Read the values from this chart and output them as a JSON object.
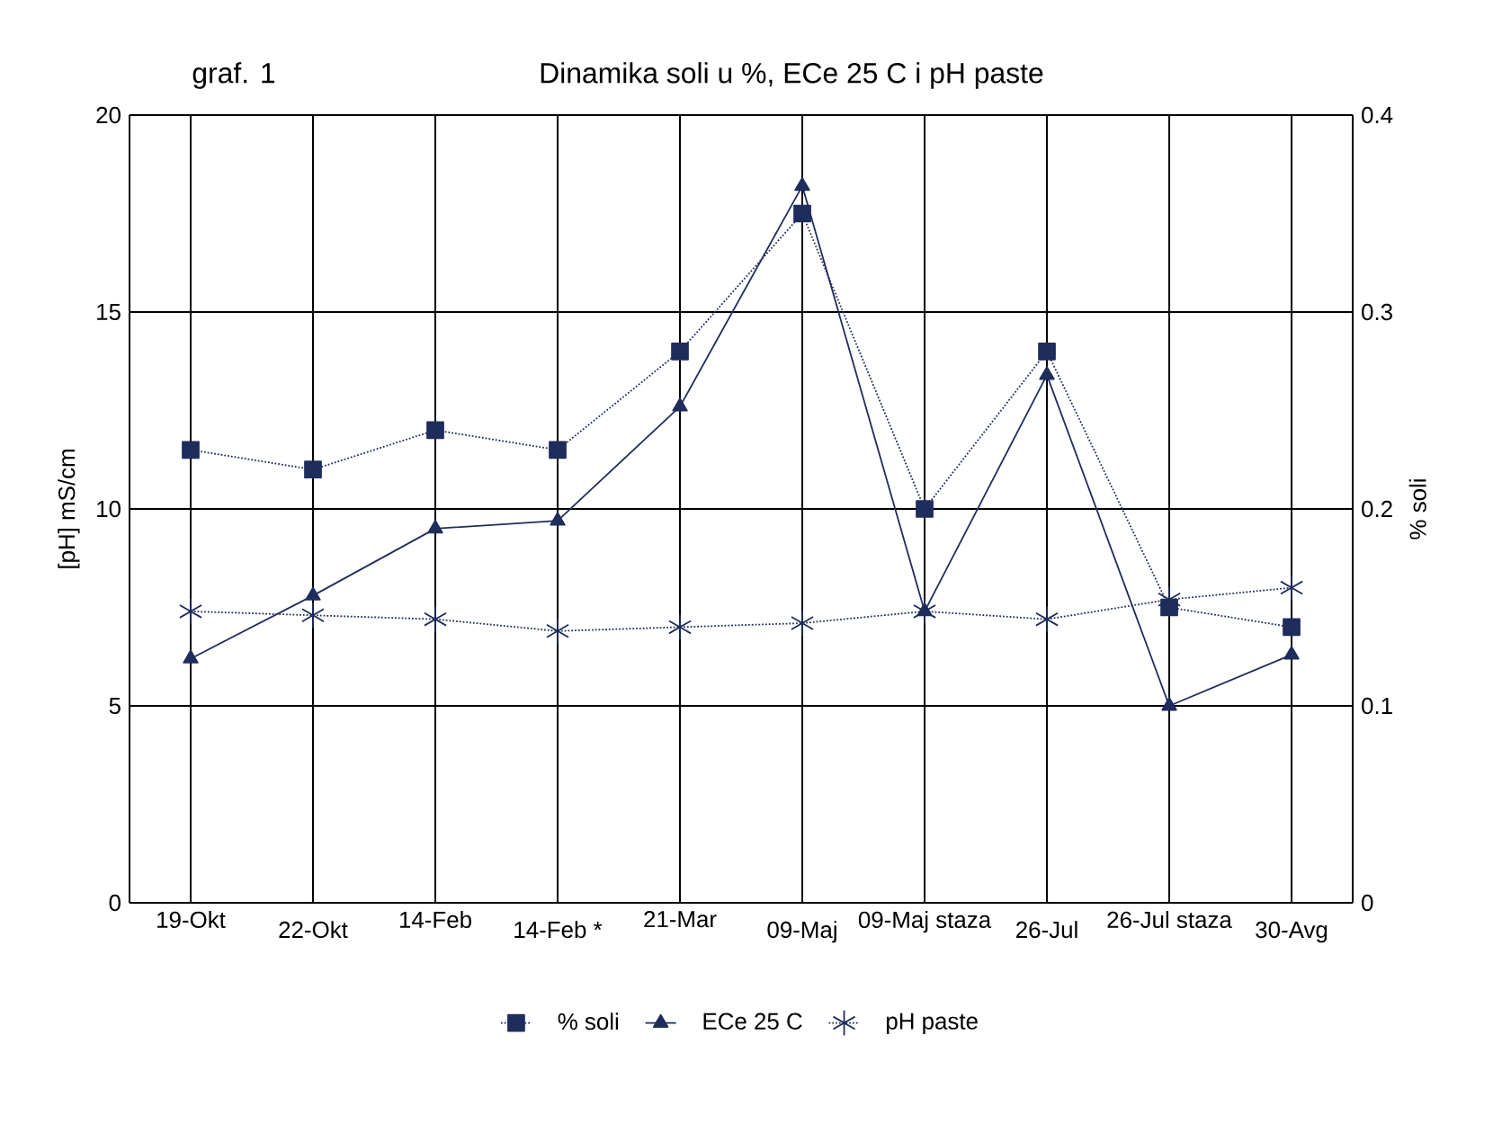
{
  "chart_data": {
    "type": "line",
    "title": "Dinamika soli u  %, ECe 25 C i pH paste",
    "subtitle": "graf.   1",
    "ylabel": "[pH]      mS/cm",
    "y2label": "% soli",
    "categories": [
      "19-Okt",
      "22-Okt",
      "14-Feb",
      "14-Feb  *",
      "21-Mar",
      "09-Maj",
      "09-Maj staza",
      "26-Jul",
      "26-Jul staza",
      "30-Avg"
    ],
    "series": [
      {
        "name": "% soli",
        "color": "#1f2d5c",
        "axis": "y2",
        "marker": "square",
        "line_style": "dotted",
        "values": [
          0.23,
          0.22,
          0.24,
          0.23,
          0.28,
          0.35,
          0.2,
          0.28,
          0.15,
          0.14
        ]
      },
      {
        "name": "ECe 25 C",
        "color": "#1f2d5c",
        "marker": "triangle",
        "line_style": "solid",
        "values": [
          6.2,
          7.8,
          9.5,
          9.7,
          12.6,
          18.2,
          7.4,
          13.4,
          5.0,
          6.3
        ]
      },
      {
        "name": "pH paste",
        "color": "#1f2d5c",
        "marker": "cross",
        "line_style": "dotted",
        "values": [
          7.4,
          7.3,
          7.2,
          6.9,
          7.0,
          7.1,
          7.4,
          7.2,
          7.7,
          8.0
        ]
      }
    ],
    "ylim": [
      0,
      20
    ],
    "yticks": [
      0,
      5,
      10,
      15,
      20
    ],
    "y2lim": [
      0,
      0.4
    ],
    "y2ticks": [
      0,
      0.1,
      0.2,
      0.3,
      0.4
    ],
    "grid": true,
    "legend": "bottom"
  }
}
